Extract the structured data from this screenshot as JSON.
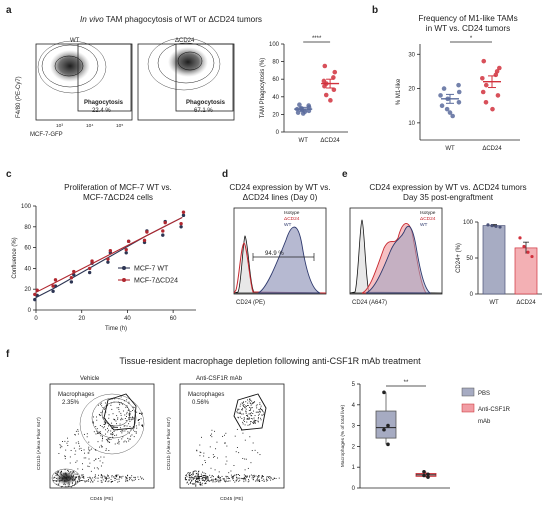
{
  "panel_a": {
    "letter": "a",
    "title_italic": "In vivo",
    "title_rest": " TAM phagocytosis of WT or ΔCD24 tumors",
    "flow": [
      {
        "name": "WT",
        "gate_label": "Phagocytosis",
        "gate_pct": "22.4 %"
      },
      {
        "name": "ΔCD24",
        "gate_label": "Phagocytosis",
        "gate_pct": "67.1 %"
      }
    ],
    "flow_ylabel": "F4/80 (PE-Cy7)",
    "flow_xlabel": "MCF-7-GFP",
    "tick_labels": [
      "10³",
      "10⁴",
      "10⁵"
    ],
    "sig": "****",
    "chart_data": {
      "type": "scatter",
      "categories": [
        "WT",
        "ΔCD24"
      ],
      "ylabel": "TAM Phagocytosis (%)",
      "ylim": [
        0,
        100
      ],
      "yticks": [
        0,
        20,
        40,
        60,
        80,
        100
      ],
      "points": [
        [
          30,
          28,
          26,
          25,
          24,
          22,
          27,
          21,
          23,
          31
        ],
        [
          75,
          68,
          62,
          58,
          55,
          52,
          48,
          42,
          36
        ]
      ],
      "means": [
        26,
        55
      ],
      "sems": [
        2,
        5
      ],
      "colors": [
        "#5a6b9c",
        "#d1313d"
      ]
    }
  },
  "panel_b": {
    "letter": "b",
    "title_l1": "Frequency of M1-like TAMs",
    "title_l2": "in WT vs. CD24 tumors",
    "sig": "*",
    "chart_data": {
      "type": "scatter",
      "categories": [
        "WT",
        "ΔCD24"
      ],
      "ylabel": "% M1-like",
      "ylim": [
        5,
        33
      ],
      "yticks": [
        10,
        20,
        30
      ],
      "points": [
        [
          21,
          19,
          18,
          17,
          16,
          15,
          14,
          13,
          12,
          20
        ],
        [
          28,
          26,
          25,
          23,
          21,
          19,
          18,
          16,
          14,
          24
        ]
      ],
      "means": [
        17,
        22
      ],
      "sems": [
        1.3,
        1.7
      ],
      "colors": [
        "#5a6b9c",
        "#d1313d"
      ]
    }
  },
  "panel_c": {
    "letter": "c",
    "title_l1": "Proliferation of MCF-7 WT vs.",
    "title_l2": "MCF-7ΔCD24 cells",
    "chart_data": {
      "type": "line",
      "xlabel": "Time (h)",
      "ylabel": "Confluence (%)",
      "xlim": [
        0,
        70
      ],
      "ylim": [
        0,
        100
      ],
      "xticks": [
        0,
        20,
        40,
        60
      ],
      "yticks": [
        0,
        20,
        40,
        60,
        80,
        100
      ],
      "series": [
        {
          "name": "MCF-7 WT",
          "color": "#2d3553",
          "x": [
            0,
            8,
            16,
            24,
            32,
            40,
            48,
            56,
            64
          ],
          "fit": [
            12,
            21,
            31,
            41,
            51,
            61,
            71,
            80,
            89
          ],
          "pts": [
            [
              10,
              14
            ],
            [
              18,
              23
            ],
            [
              27,
              34
            ],
            [
              36,
              45
            ],
            [
              46,
              55
            ],
            [
              55,
              66
            ],
            [
              65,
              76
            ],
            [
              72,
              85
            ],
            [
              80,
              91
            ]
          ]
        },
        {
          "name": "MCF-7ΔCD24",
          "color": "#b0272f",
          "x": [
            0,
            8,
            16,
            24,
            32,
            40,
            48,
            56,
            64
          ],
          "fit": [
            17,
            26,
            35,
            44,
            53,
            62,
            71,
            80,
            89
          ],
          "pts": [
            [
              15,
              19
            ],
            [
              23,
              29
            ],
            [
              31,
              37
            ],
            [
              40,
              47
            ],
            [
              49,
              57
            ],
            [
              58,
              66
            ],
            [
              67,
              75
            ],
            [
              76,
              84
            ],
            [
              83,
              94
            ]
          ]
        }
      ]
    }
  },
  "panel_d": {
    "letter": "d",
    "title_l1": "CD24 expression by WT vs.",
    "title_l2": "ΔCD24 lines (Day 0)",
    "xlabel": "CD24 (PE)",
    "legend": [
      "Isotype",
      "ΔCD24",
      "WT"
    ],
    "gate_pct": "94.9 %"
  },
  "panel_e": {
    "letter": "e",
    "title_l1": "CD24 expression by WT vs. ΔCD24 tumors",
    "title_l2": "Day 35 post-engraftment",
    "xlabel": "CD24 (A647)",
    "legend": [
      "Isotype",
      "ΔCD24",
      "WT"
    ],
    "chart_data": {
      "type": "bar",
      "categories": [
        "WT",
        "ΔCD24"
      ],
      "values": [
        95,
        64
      ],
      "sems": [
        1.5,
        8
      ],
      "ylabel": "CD24+ (%)",
      "ylim": [
        0,
        100
      ],
      "yticks": [
        0,
        50,
        100
      ],
      "points": [
        [
          96,
          95,
          94,
          93
        ],
        [
          78,
          66,
          58,
          52
        ]
      ],
      "colors": [
        "#a7acc3",
        "#f3b0b4"
      ]
    }
  },
  "panel_f": {
    "letter": "f",
    "title": "Tissue-resident macrophage depletion following anti-CSF1R mAb treatment",
    "flow": [
      {
        "name": "Vehicle",
        "gate_label": "Macrophages",
        "gate_pct": "2.35%"
      },
      {
        "name": "Anti-CSF1R mAb",
        "gate_label": "Macrophages",
        "gate_pct": "0.56%"
      }
    ],
    "flow_ylabel": "CD11b (Alexa Fluor 647)",
    "flow_xlabel": "CD45 (PE)",
    "sig": "**",
    "legend": [
      "PBS",
      "Anti-CSF1R",
      "mAb"
    ],
    "chart_data": {
      "type": "box",
      "categories": [
        "PBS",
        "Anti-CSF1R mAb"
      ],
      "ylabel": "Macrophages (% of total live)",
      "ylim": [
        0,
        5
      ],
      "yticks": [
        0,
        1,
        2,
        3,
        4,
        5
      ],
      "boxes": [
        {
          "min": 2.1,
          "q1": 2.4,
          "median": 2.9,
          "q3": 3.7,
          "max": 4.6,
          "points": [
            4.6,
            3.0,
            2.8,
            2.1
          ]
        },
        {
          "min": 0.5,
          "q1": 0.56,
          "median": 0.63,
          "q3": 0.7,
          "max": 0.78,
          "points": [
            0.78,
            0.66,
            0.6,
            0.52
          ]
        }
      ],
      "colors": [
        "#a6abc2",
        "#f19da4"
      ]
    }
  }
}
